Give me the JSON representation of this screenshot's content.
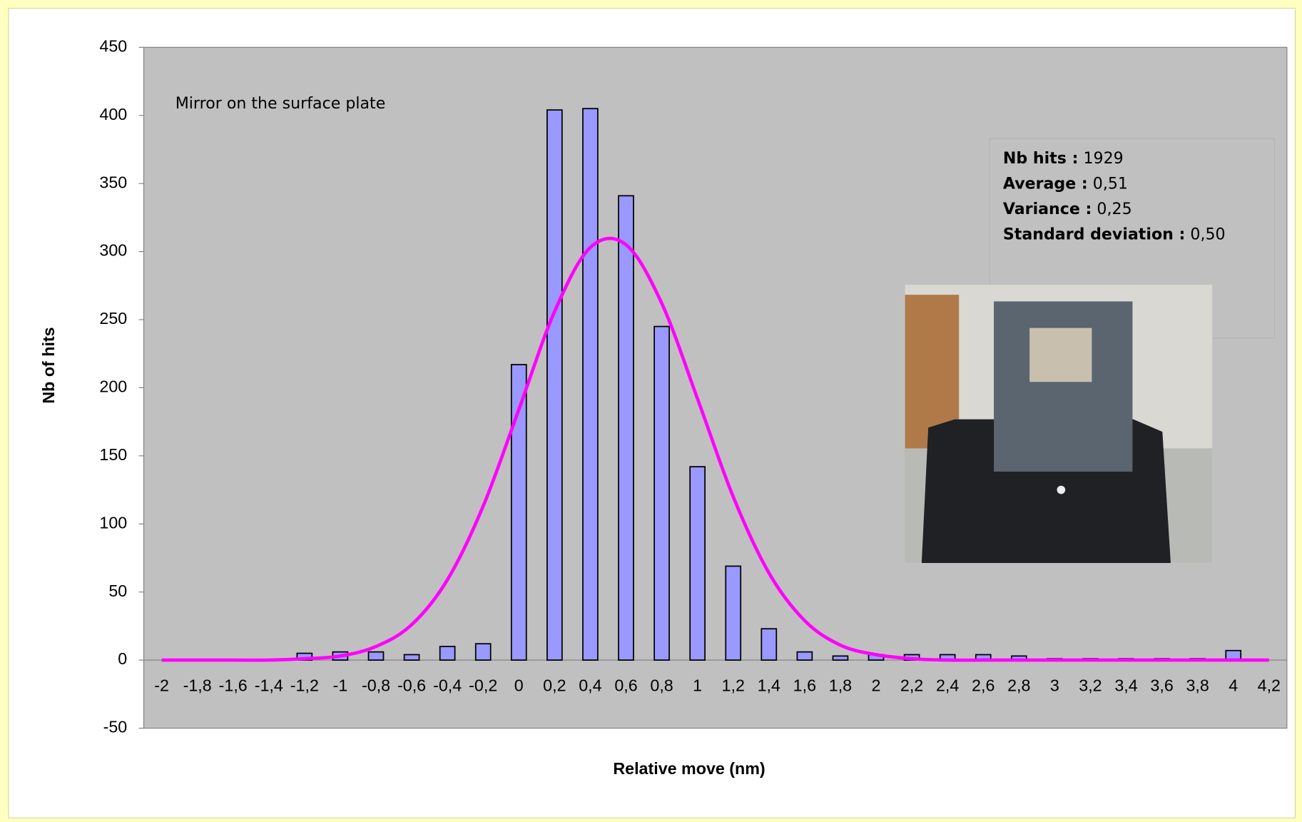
{
  "chart_data": {
    "type": "bar",
    "x_label": "Relative move (nm)",
    "y_label": "Nb of hits",
    "annotation": "Mirror on the surface plate",
    "stats": [
      {
        "label": "Nb hits :",
        "value": "1929"
      },
      {
        "label": "Average :",
        "value": "0,51"
      },
      {
        "label": "Variance :",
        "value": "0,25"
      },
      {
        "label": "Standard deviation :",
        "value": "0,50"
      }
    ],
    "categories": [
      "-2",
      "-1,8",
      "-1,6",
      "-1,4",
      "-1,2",
      "-1",
      "-0,8",
      "-0,6",
      "-0,4",
      "-0,2",
      "0",
      "0,2",
      "0,4",
      "0,6",
      "0,8",
      "1",
      "1,2",
      "1,4",
      "1,6",
      "1,8",
      "2",
      "2,2",
      "2,4",
      "2,6",
      "2,8",
      "3",
      "3,2",
      "3,4",
      "3,6",
      "3,8",
      "4",
      "4,2"
    ],
    "series": [
      {
        "type": "bar",
        "color": "#9999ff",
        "values": [
          0,
          0,
          0,
          0,
          5,
          6,
          6,
          4,
          10,
          12,
          217,
          404,
          405,
          341,
          245,
          142,
          69,
          23,
          6,
          3,
          4,
          4,
          4,
          4,
          3,
          1,
          1,
          1,
          1,
          1,
          7,
          0
        ]
      },
      {
        "type": "line",
        "color": "#ff00ff",
        "values": [
          0,
          0,
          0,
          0,
          1,
          3,
          10,
          26,
          59,
          113,
          184,
          256,
          303,
          305,
          262,
          192,
          120,
          64,
          29,
          11,
          4,
          1,
          0,
          0,
          0,
          0,
          0,
          0,
          0,
          0,
          0,
          0
        ]
      }
    ],
    "ylim": [
      -50,
      450
    ],
    "yticks": [
      -50,
      0,
      50,
      100,
      150,
      200,
      250,
      300,
      350,
      400,
      450
    ],
    "plot_background": "#c0c0c0"
  }
}
